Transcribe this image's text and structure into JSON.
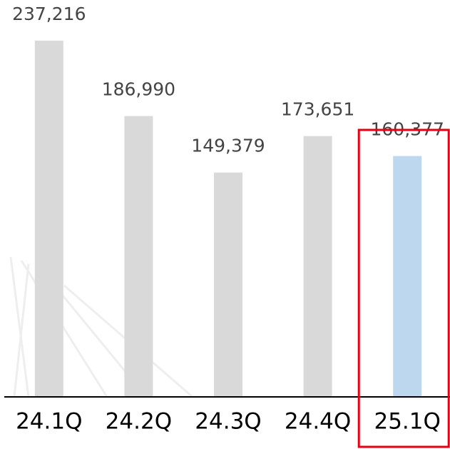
{
  "chart_data": {
    "type": "bar",
    "categories": [
      "24.1Q",
      "24.2Q",
      "24.3Q",
      "24.4Q",
      "25.1Q"
    ],
    "values": [
      237216,
      186990,
      149379,
      173651,
      160377
    ],
    "value_labels": [
      "237,216",
      "186,990",
      "149,379",
      "173,651",
      "160,377"
    ],
    "colors": [
      "#d9d9d9",
      "#d9d9d9",
      "#d9d9d9",
      "#d9d9d9",
      "#bdd7ee"
    ],
    "ylim": [
      0,
      250000
    ],
    "highlight": 4,
    "highlight_color": "#e60012"
  }
}
